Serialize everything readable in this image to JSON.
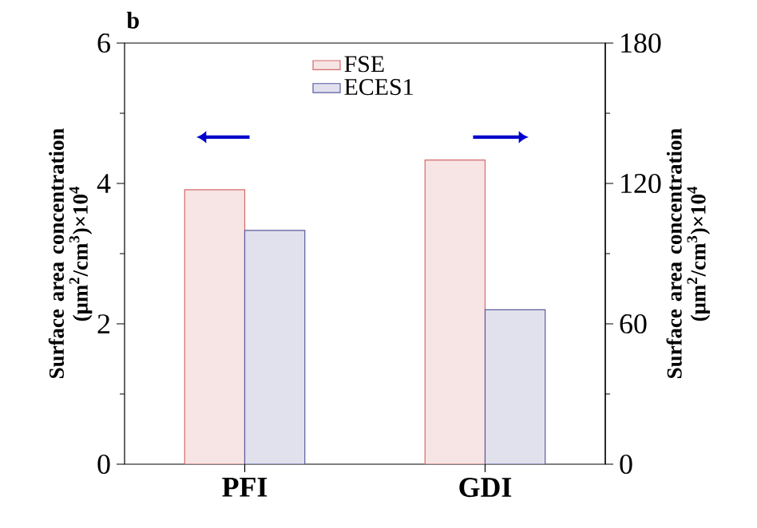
{
  "chart_data": {
    "type": "bar",
    "title": "b",
    "categories": [
      "PFI",
      "GDI"
    ],
    "series": [
      {
        "name": "FSE",
        "color": "#d46a6a",
        "values": [
          3.91,
          null
        ]
      },
      {
        "name": "ECES1",
        "color": "#5a5aa0",
        "values": [
          3.33,
          null
        ]
      },
      {
        "color": "#d46a6a",
        "values": [
          null,
          130
        ],
        "axis": "y2"
      },
      {
        "color": "#5a5aa0",
        "values": [
          null,
          66
        ],
        "axis": "y2"
      }
    ],
    "ylabel": "Surface area concentration (μm$^{2}$/cm$^{3}$)×10$^{4}$",
    "y2label": "Surface area concentration (μm$^{2}$/cm$^{3}$)×10$^{4}$",
    "ylim": [
      0,
      6
    ],
    "yticks": [
      0,
      2,
      4,
      6
    ],
    "y2lim": [
      0,
      180
    ],
    "y2ticks": [
      0,
      60,
      120,
      180
    ],
    "legend": "top",
    "grid": false
  }
}
